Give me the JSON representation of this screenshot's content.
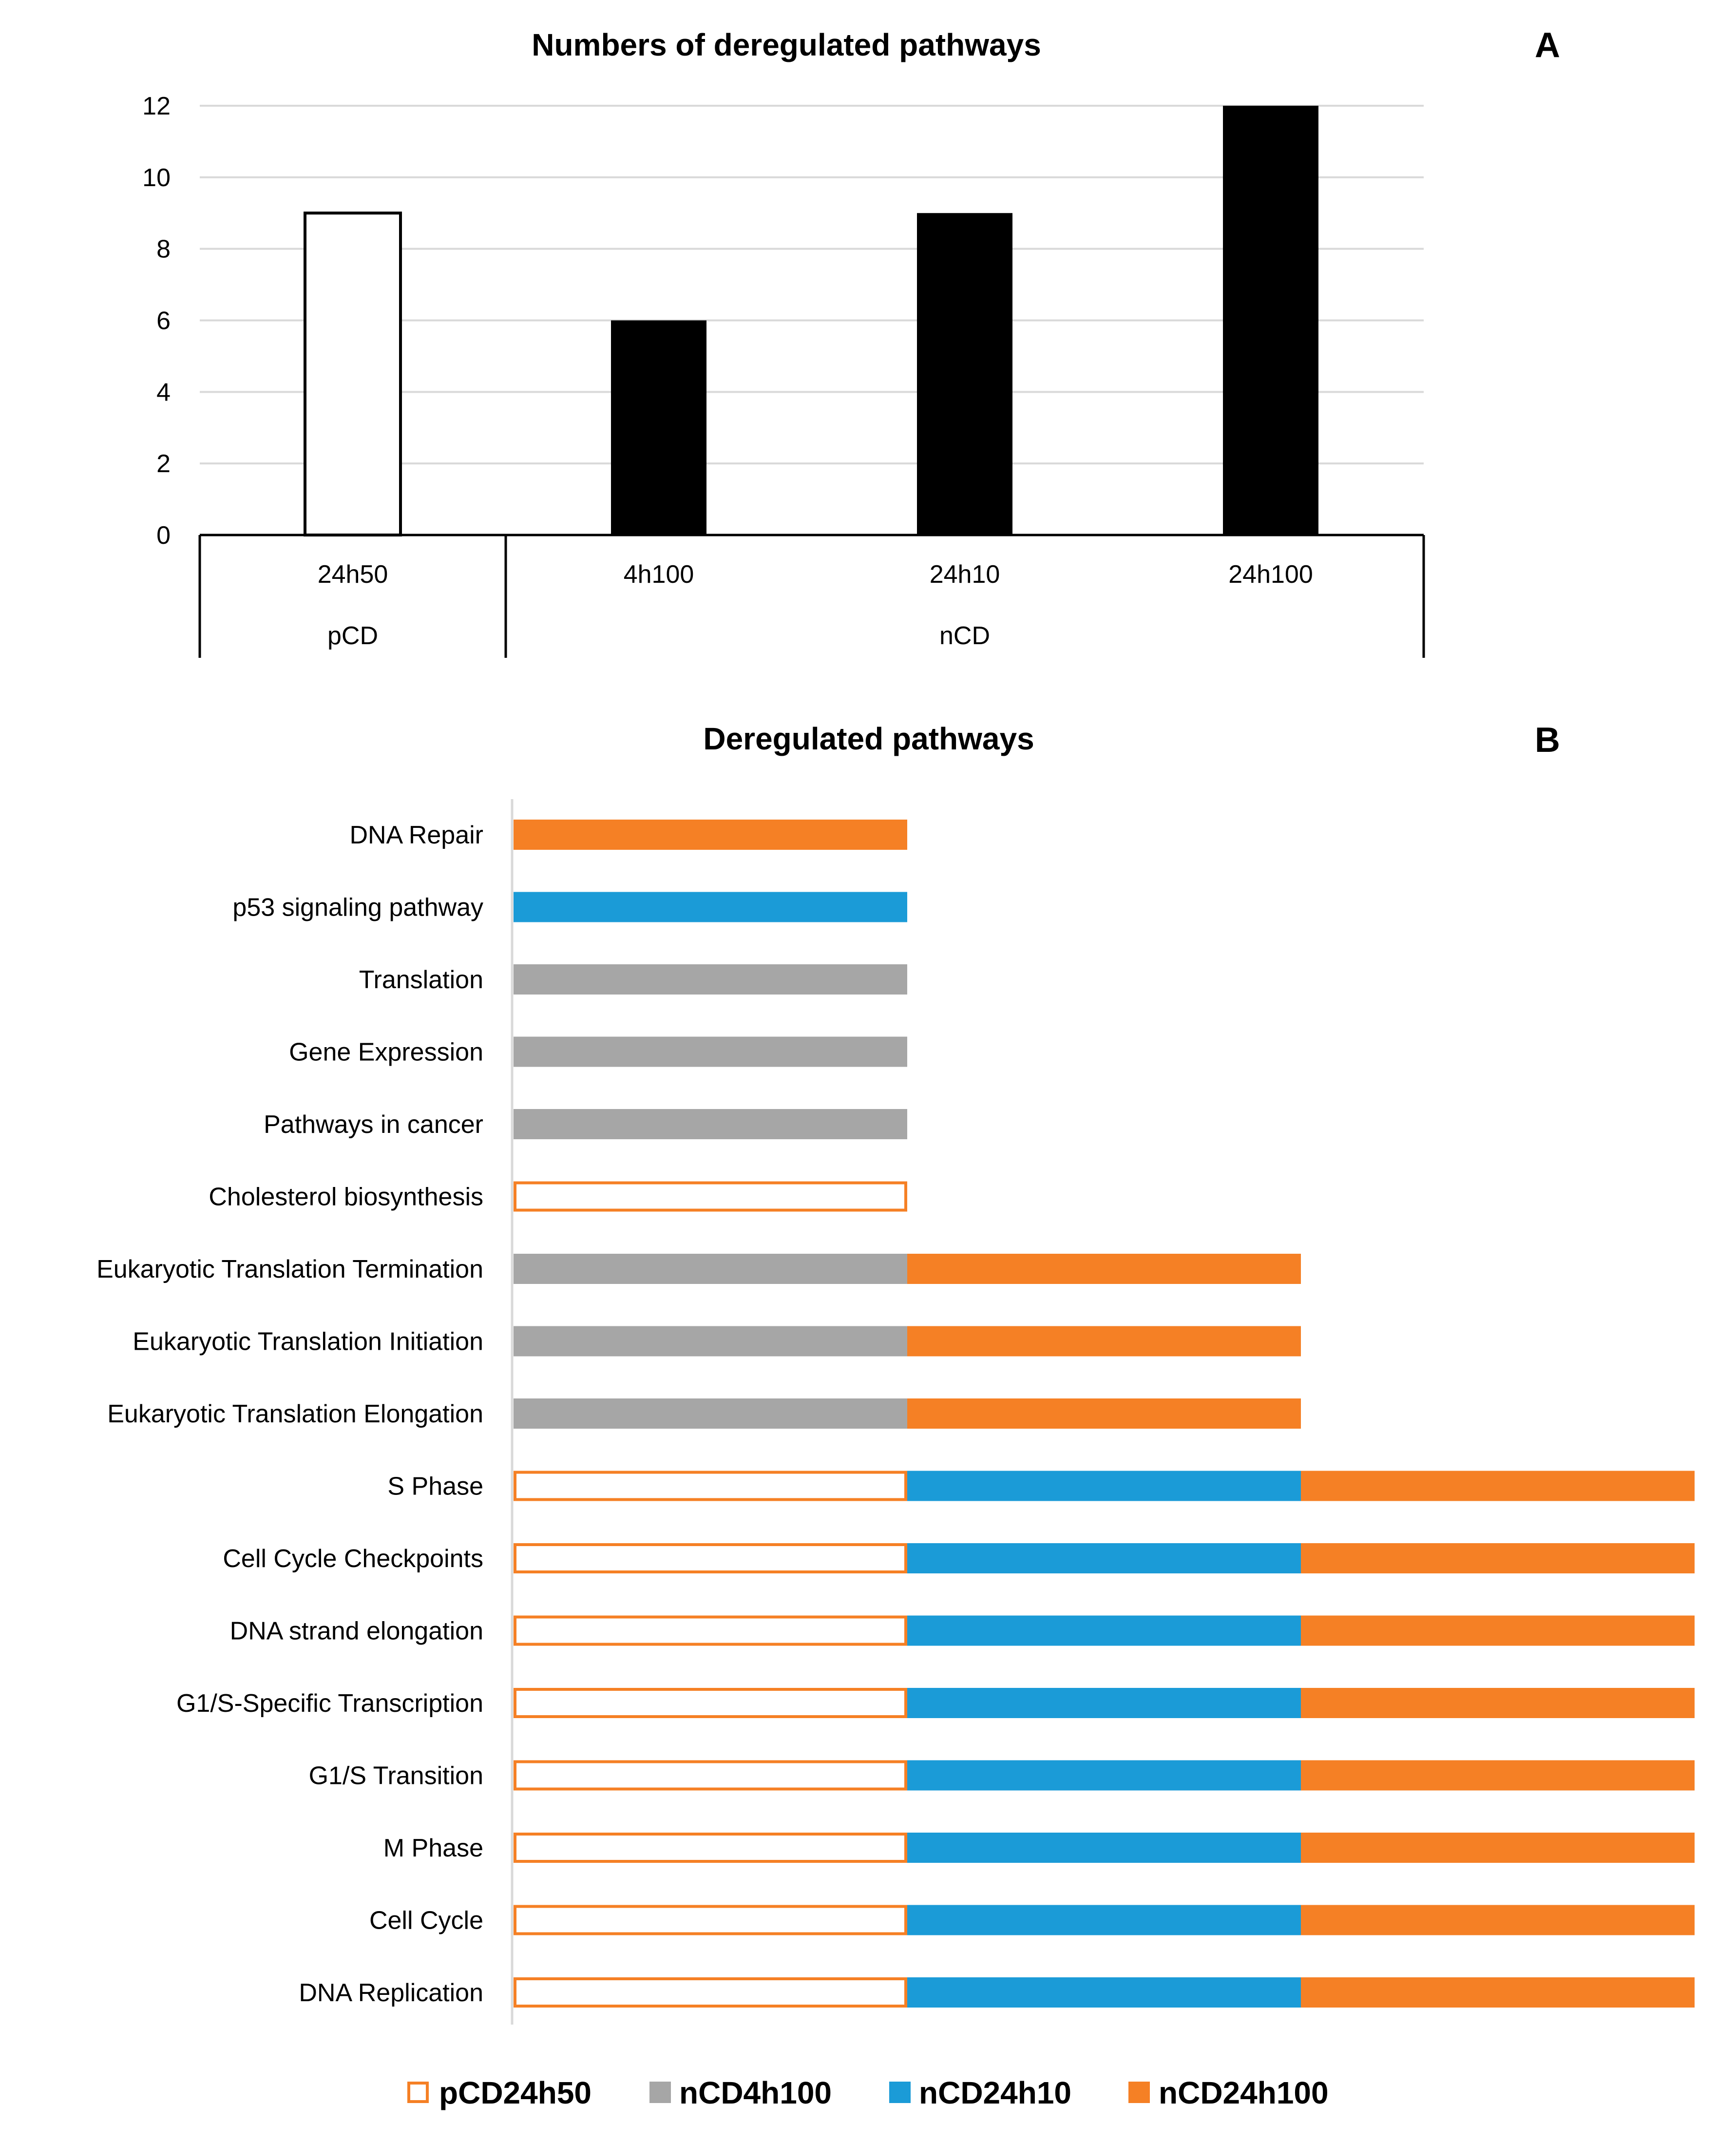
{
  "chart_data": [
    {
      "panel": "A",
      "type": "bar",
      "title": "Numbers of deregulated pathways",
      "categories": [
        "24h50",
        "4h100",
        "24h10",
        "24h100"
      ],
      "groups": [
        {
          "label": "pCD",
          "categories": [
            "24h50"
          ]
        },
        {
          "label": "nCD",
          "categories": [
            "4h100",
            "24h10",
            "24h100"
          ]
        }
      ],
      "values": [
        9,
        6,
        9,
        12
      ],
      "bar_styles": [
        "open",
        "filled",
        "filled",
        "filled"
      ],
      "ylim": [
        0,
        12
      ],
      "yticks": [
        0,
        2,
        4,
        6,
        8,
        10,
        12
      ],
      "xlabel": "",
      "ylabel": "",
      "grid": true,
      "colors": {
        "filled": "#000000",
        "open": "#ffffff",
        "outline": "#000000",
        "grid": "#d9d9d9"
      }
    },
    {
      "panel": "B",
      "type": "bar",
      "orientation": "horizontal",
      "stacked": true,
      "title": "Deregulated pathways",
      "categories": [
        "DNA Repair",
        "p53 signaling pathway",
        "Translation",
        "Gene Expression",
        "Pathways in cancer",
        "Cholesterol biosynthesis",
        "Eukaryotic Translation Termination",
        "Eukaryotic Translation Initiation",
        "Eukaryotic Translation Elongation",
        "S Phase",
        "Cell Cycle Checkpoints",
        "DNA strand elongation",
        "G1/S-Specific Transcription",
        "G1/S Transition",
        "M Phase",
        "Cell Cycle",
        "DNA Replication"
      ],
      "series": [
        {
          "name": "pCD24h50",
          "color": "#ffffff",
          "outline": "#f58025",
          "style": "open",
          "values": [
            0,
            0,
            0,
            0,
            0,
            1,
            0,
            0,
            0,
            1,
            1,
            1,
            1,
            1,
            1,
            1,
            1
          ]
        },
        {
          "name": "nCD4h100",
          "color": "#a6a6a6",
          "style": "filled",
          "values": [
            0,
            0,
            1,
            1,
            1,
            0,
            1,
            1,
            1,
            0,
            0,
            0,
            0,
            0,
            0,
            0,
            0
          ]
        },
        {
          "name": "nCD24h10",
          "color": "#1b9bd7",
          "style": "filled",
          "values": [
            0,
            1,
            0,
            0,
            0,
            0,
            0,
            0,
            0,
            1,
            1,
            1,
            1,
            1,
            1,
            1,
            1
          ]
        },
        {
          "name": "nCD24h100",
          "color": "#f58025",
          "style": "filled",
          "values": [
            1,
            0,
            0,
            0,
            0,
            0,
            1,
            1,
            1,
            1,
            1,
            1,
            1,
            1,
            1,
            1,
            1
          ]
        }
      ],
      "xlim": [
        0,
        3
      ],
      "legend_position": "bottom",
      "axis_color": "#d9d9d9"
    }
  ]
}
